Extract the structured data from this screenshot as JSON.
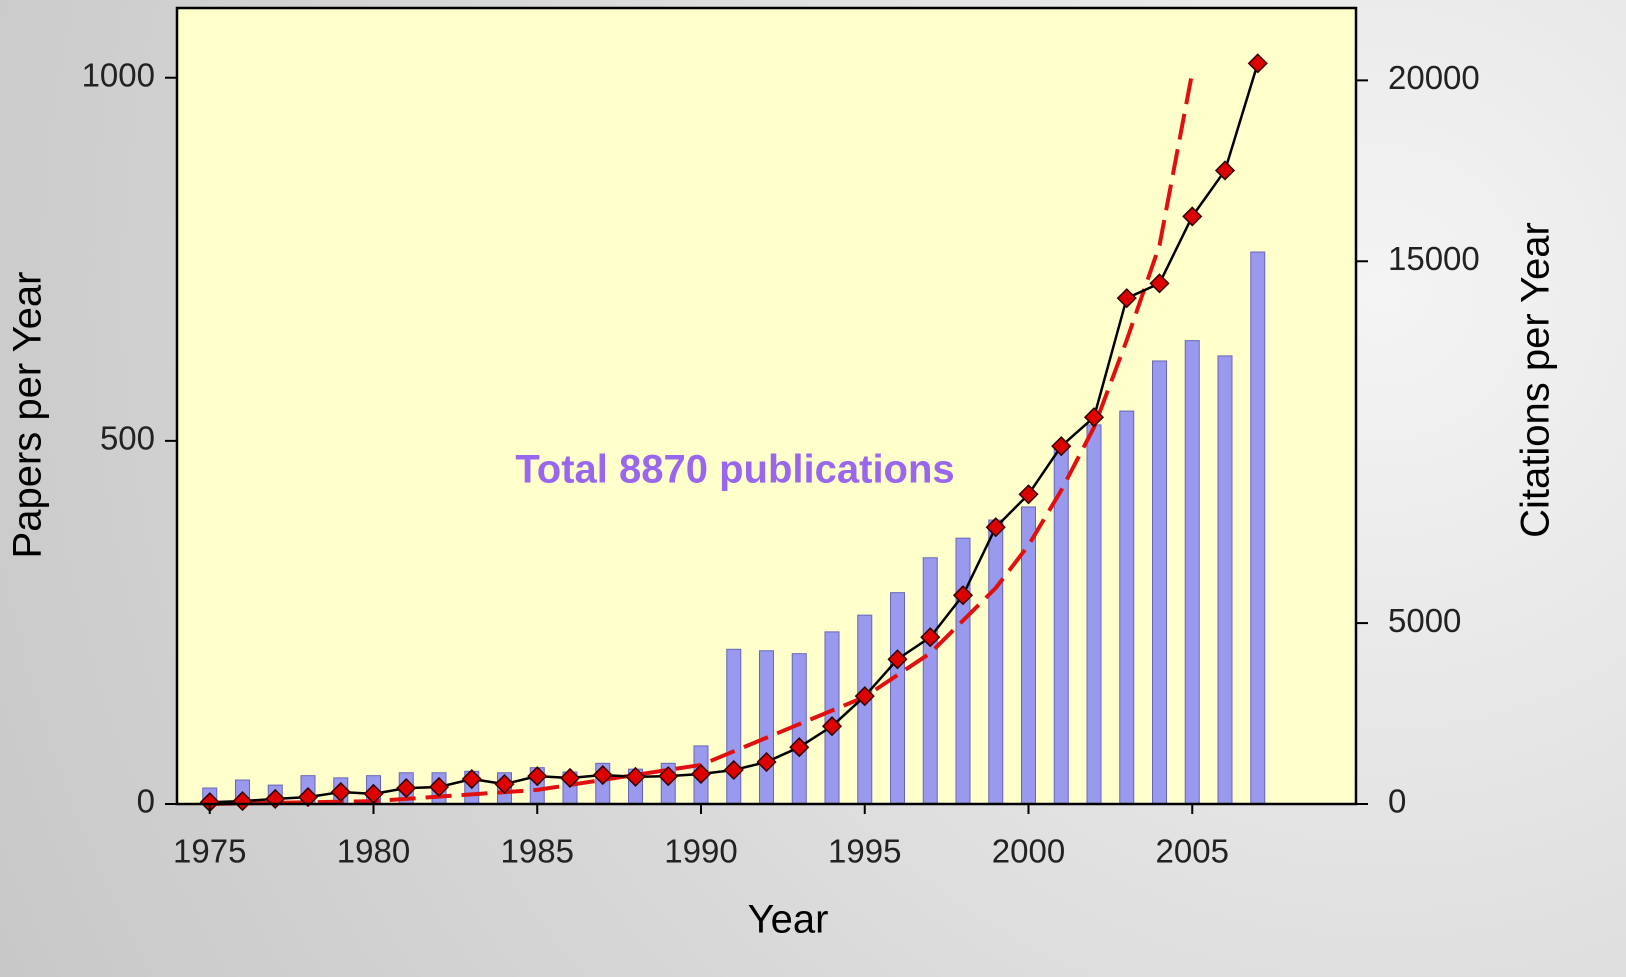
{
  "chart_data": {
    "type": "bar",
    "x_label": "Year",
    "y_label": "Papers per Year",
    "y2_label": "Citations per Year",
    "annotation": "Total 8870 publications",
    "x": [
      1975,
      1976,
      1977,
      1978,
      1979,
      1980,
      1981,
      1982,
      1983,
      1984,
      1985,
      1986,
      1987,
      1988,
      1989,
      1990,
      1991,
      1992,
      1993,
      1994,
      1995,
      1996,
      1997,
      1998,
      1999,
      2000,
      2001,
      2002,
      2003,
      2004,
      2005,
      2006,
      2007
    ],
    "series": [
      {
        "type": "bar",
        "color": "#9999ee",
        "values": [
          22,
          33,
          26,
          39,
          36,
          39,
          43,
          43,
          45,
          43,
          50,
          44,
          56,
          48,
          56,
          80,
          213,
          211,
          207,
          237,
          260,
          291,
          339,
          366,
          391,
          409,
          490,
          522,
          541,
          610,
          638,
          617,
          760
        ]
      },
      {
        "type": "line",
        "axis": "y2",
        "color": "#000000",
        "marker_color": "#dd0000",
        "values": [
          50,
          80,
          140,
          190,
          330,
          280,
          440,
          470,
          690,
          550,
          770,
          720,
          800,
          750,
          770,
          830,
          940,
          1160,
          1570,
          2150,
          2980,
          4000,
          4610,
          5770,
          7650,
          8560,
          9890,
          10690,
          13980,
          14390,
          16240,
          17510,
          20470
        ]
      },
      {
        "type": "line",
        "axis": "y2",
        "color": "#e01010",
        "dashed": true,
        "x": [
          1975,
          1980,
          1985,
          1990,
          1995,
          1997,
          1999,
          2000,
          2001,
          2002,
          2003,
          2004,
          2005
        ],
        "values": [
          0,
          80,
          390,
          1080,
          2960,
          4170,
          5970,
          7150,
          8670,
          10410,
          12820,
          15440,
          20220
        ]
      }
    ],
    "xlim": [
      1974,
      2010
    ],
    "xticks": [
      1975,
      1980,
      1985,
      1990,
      1995,
      2000,
      2005
    ],
    "ylim": [
      0,
      1096
    ],
    "yticks": [
      0,
      500,
      1000
    ],
    "y2lim": [
      0,
      22000
    ],
    "y2ticks": [
      0,
      5000,
      15000,
      20000
    ],
    "plot_background": "#ffffcc"
  }
}
